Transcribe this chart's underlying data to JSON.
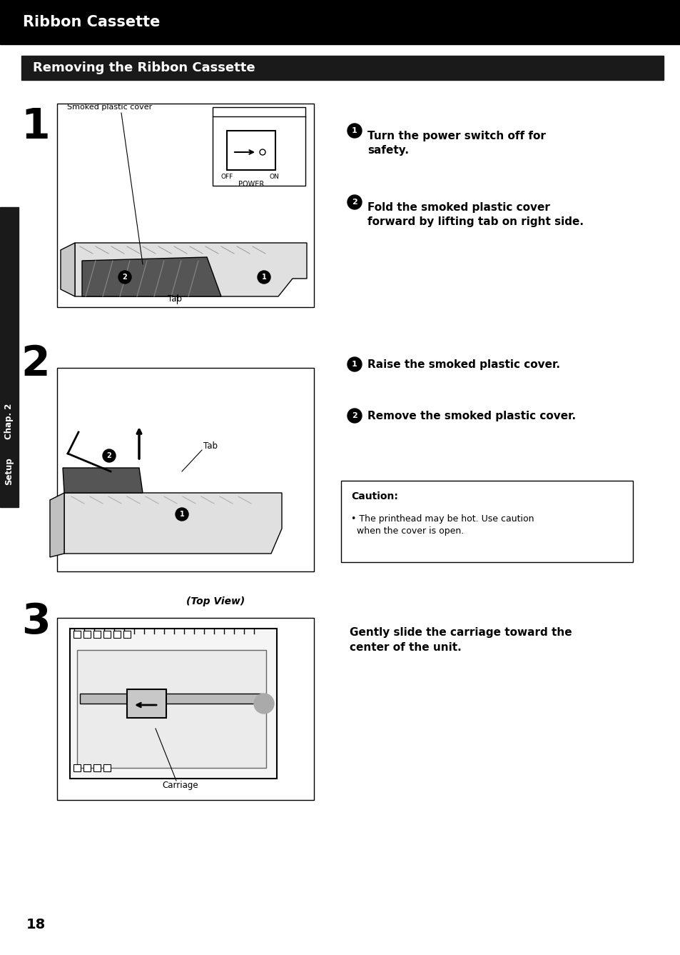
{
  "page_bg": "#ffffff",
  "header_bg": "#000000",
  "header_text": "Ribbon Cassette",
  "header_text_color": "#ffffff",
  "subheader_bg": "#1a1a1a",
  "subheader_text": "Removing the Ribbon Cassette",
  "subheader_text_color": "#ffffff",
  "sidebar_bg": "#1a1a1a",
  "sidebar_text": "Chap. 2",
  "sidebar_text2": "Setup",
  "sidebar_text_color": "#ffffff",
  "step1_num": "1",
  "step2_num": "2",
  "step3_num": "3",
  "step1_instructions": [
    [
      "1",
      "Turn the power switch off for\nsafety."
    ],
    [
      "2",
      "Fold the smoked plastic cover\nforward by lifting tab on right side."
    ]
  ],
  "step2_instructions": [
    [
      "1",
      "Raise the smoked plastic cover."
    ],
    [
      "2",
      "Remove the smoked plastic cover."
    ]
  ],
  "step3_text": "Gently slide the carriage toward the\ncenter of the unit.",
  "caution_title": "Caution:",
  "caution_text": "• The printhead may be hot. Use caution\n  when the cover is open.",
  "page_num": "18",
  "img1_label_top": "Smoked plastic cover",
  "img1_label_tab": "Tab",
  "img1_label_power": "POWER",
  "img1_label_off": "OFF",
  "img1_label_on": "ON",
  "img2_label_tab": "Tab",
  "img3_label_topview": "(Top View)",
  "img3_label_carriage": "Carriage"
}
